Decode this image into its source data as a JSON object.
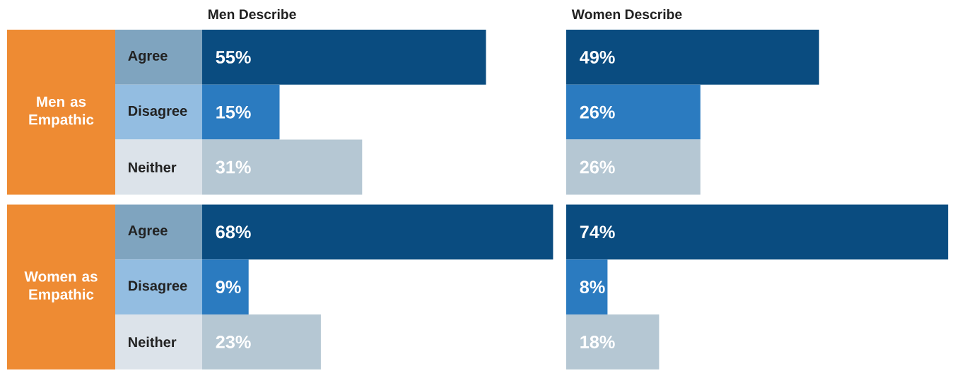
{
  "chart_data": [
    {
      "type": "bar",
      "orientation": "horizontal",
      "title": "Men Describe",
      "categories": [
        "Agree",
        "Disagree",
        "Neither",
        "Agree",
        "Disagree",
        "Neither"
      ],
      "values": [
        55,
        15,
        31,
        68,
        9,
        23
      ],
      "colors": [
        "#0a4c80",
        "#2b7bc0",
        "#b5c7d3",
        "#0a4c80",
        "#2b7bc0",
        "#b5c7d3"
      ],
      "value_labels": [
        "55%",
        "15%",
        "31%",
        "68%",
        "9%",
        "23%"
      ],
      "annotations": [
        "Men as Empathic",
        "Women as Empathic"
      ]
    },
    {
      "type": "bar",
      "orientation": "horizontal",
      "title": "Women Describe",
      "categories": [
        null,
        null,
        null,
        null,
        null,
        null
      ],
      "values": [
        49,
        26,
        26,
        74,
        8,
        18
      ],
      "colors": [
        "#0a4c80",
        "#2b7bc0",
        "#b5c7d3",
        "#0a4c80",
        "#2b7bc0",
        "#b5c7d3"
      ],
      "value_labels": [
        "49%",
        "26%",
        "26%",
        "74%",
        "8%",
        "18%"
      ]
    }
  ]
}
